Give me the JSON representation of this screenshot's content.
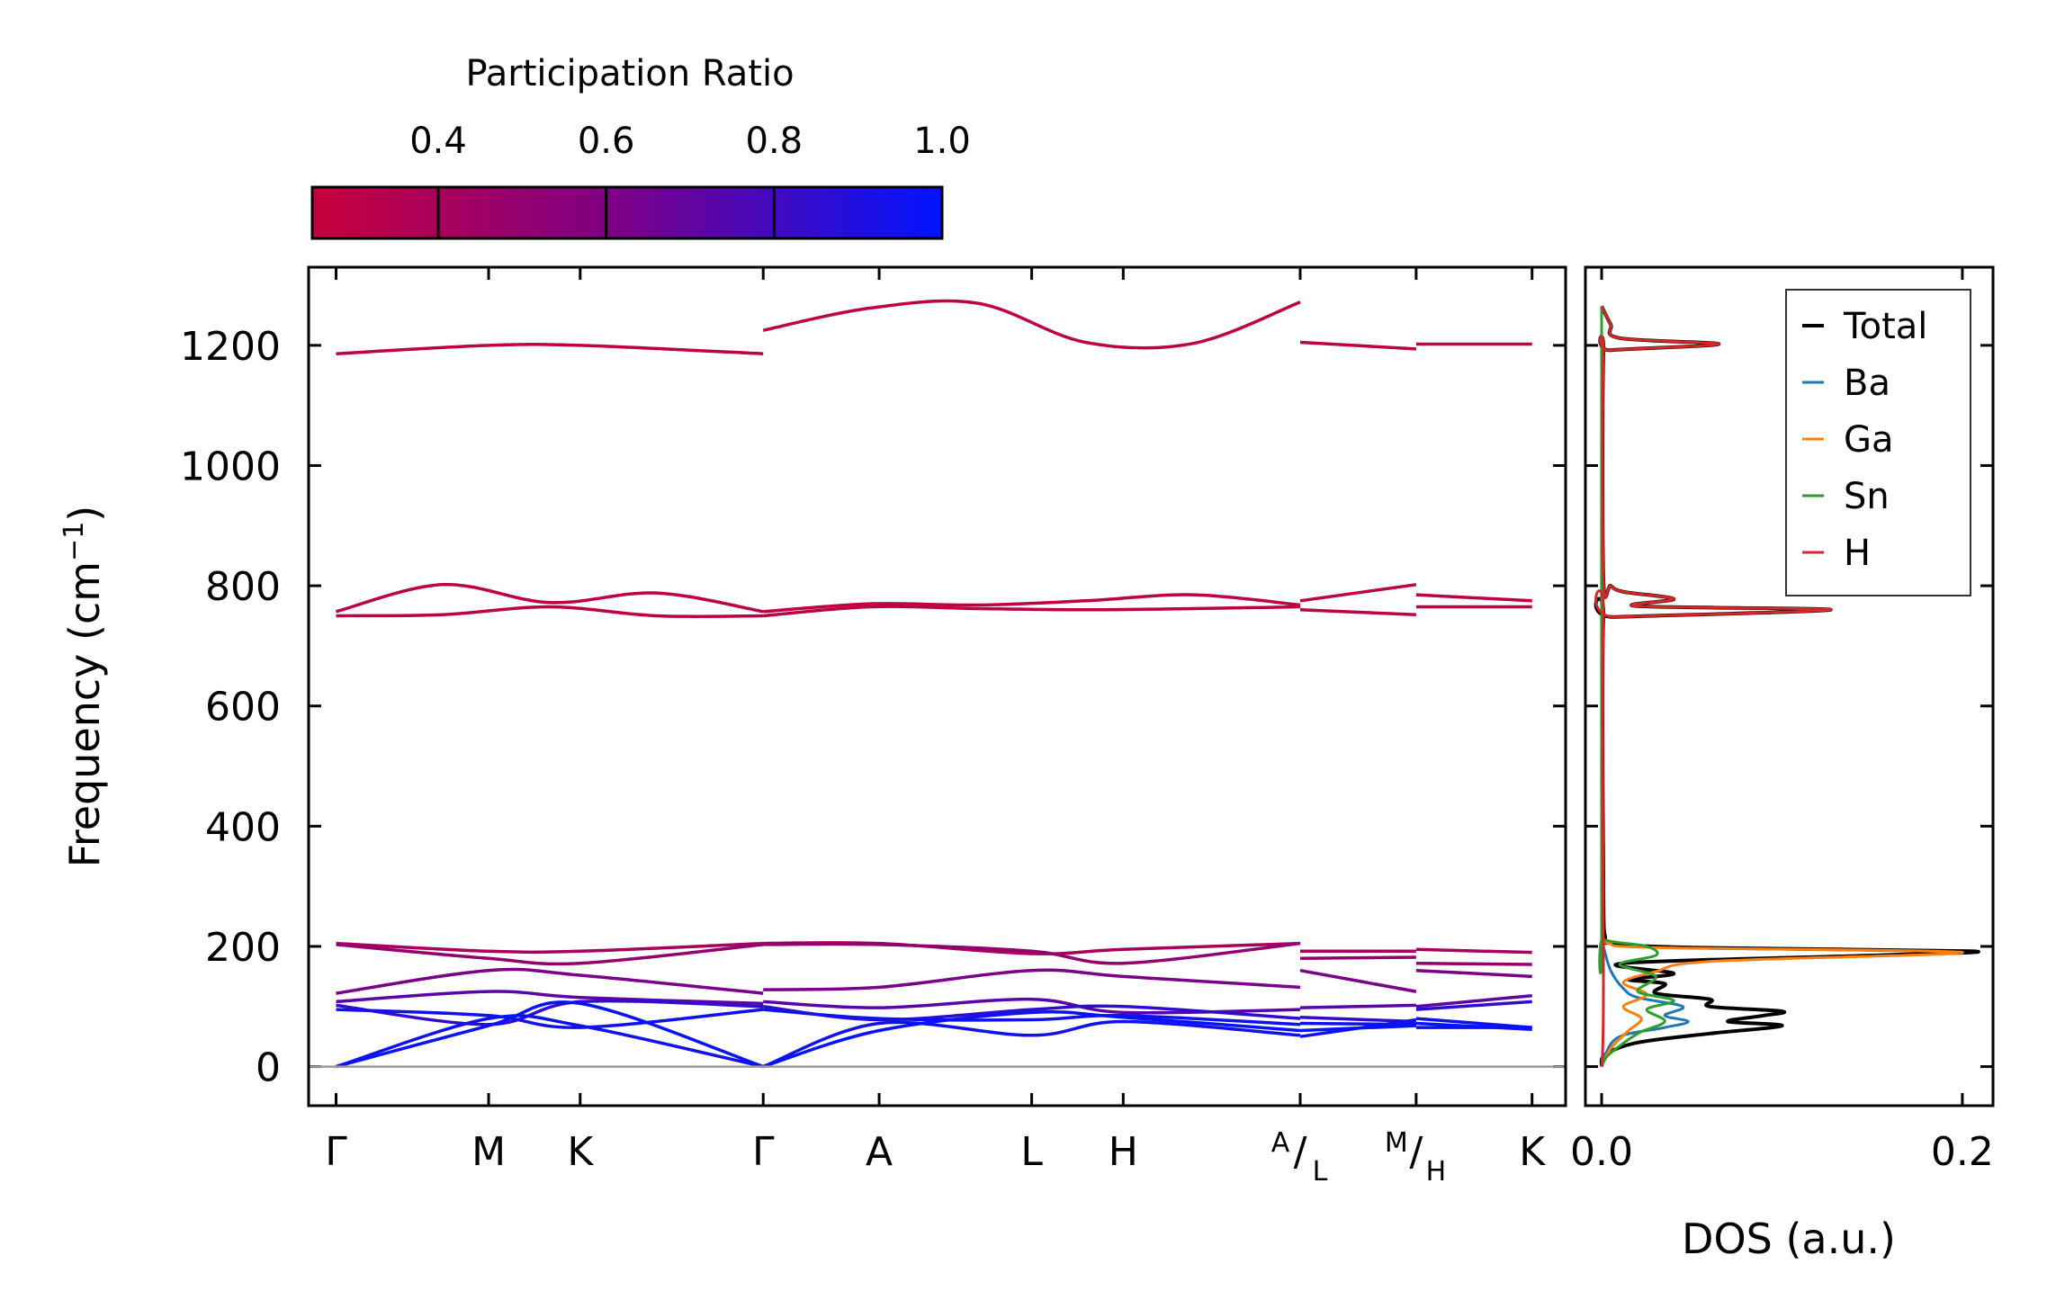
{
  "chart_data": [
    {
      "id": "band-structure",
      "type": "line",
      "ylabel": "Frequency (cm⁻¹)",
      "ylabel_text": "Frequency (cm",
      "ylabel_sup": "−1",
      "ylabel_close": ")",
      "ylim": [
        -65,
        1330
      ],
      "yticks": [
        0,
        200,
        400,
        600,
        800,
        1000,
        1200
      ],
      "ytick_labels": [
        "0",
        "200",
        "400",
        "600",
        "800",
        "1000",
        "1200"
      ],
      "kpoints": [
        {
          "label": "Γ",
          "x": 0.0
        },
        {
          "label": "M",
          "x": 1.0
        },
        {
          "label": "K",
          "x": 1.6
        },
        {
          "label": "Γ",
          "x": 2.8
        },
        {
          "label": "A",
          "x": 3.56
        },
        {
          "label": "L",
          "x": 4.56
        },
        {
          "label": "H",
          "x": 5.16
        },
        {
          "label_top": "A",
          "label_bottom": "L",
          "x": 6.32
        },
        {
          "label_top": "M",
          "label_bottom": "H",
          "x": 7.08
        },
        {
          "label": "K",
          "x": 7.84
        }
      ],
      "segments": [
        [
          0,
          2.8
        ],
        [
          2.8,
          6.32
        ],
        [
          6.32,
          7.08
        ],
        [
          7.08,
          7.84
        ]
      ],
      "zero_line": 0,
      "bands": [
        {
          "pr": 0.3,
          "segs": [
            [
              1186,
              1200,
              1200,
              1186
            ],
            [
              1225,
              1262,
              1270,
              1205,
              1203,
              1272
            ],
            [
              1205,
              1194
            ],
            [
              1202,
              1202
            ]
          ]
        },
        {
          "pr": 0.3,
          "segs": [
            [
              757,
              802,
              772,
              788,
              757
            ],
            [
              757,
              770,
              768,
              775,
              785,
              768
            ],
            [
              775,
              802
            ],
            [
              785,
              775
            ]
          ]
        },
        {
          "pr": 0.3,
          "segs": [
            [
              750,
              752,
              765,
              750,
              750
            ],
            [
              750,
              765,
              762,
              760,
              762,
              765
            ],
            [
              760,
              752
            ],
            [
              765,
              765
            ]
          ]
        },
        {
          "pr": 0.4,
          "segs": [
            [
              205,
              192,
              192,
              205
            ],
            [
              205,
              205,
              188,
              195,
              205
            ],
            [
              192,
              192
            ],
            [
              195,
              190
            ]
          ]
        },
        {
          "pr": 0.5,
          "segs": [
            [
              203,
              180,
              172,
              203
            ],
            [
              203,
              203,
              192,
              172,
              205
            ],
            [
              180,
              182
            ],
            [
              172,
              170
            ]
          ]
        },
        {
          "pr": 0.62,
          "segs": [
            [
              122,
              160,
              152,
              122
            ],
            [
              128,
              132,
              160,
              150,
              132
            ],
            [
              160,
              125
            ],
            [
              160,
              150
            ]
          ]
        },
        {
          "pr": 0.72,
          "segs": [
            [
              108,
              125,
              115,
              105
            ],
            [
              108,
              98,
              112,
              90,
              95
            ],
            [
              98,
              102
            ],
            [
              100,
              118
            ]
          ]
        },
        {
          "pr": 0.85,
          "segs": [
            [
              102,
              70,
              108,
              100
            ],
            [
              100,
              78,
              95,
              100,
              80
            ],
            [
              82,
              75
            ],
            [
              95,
              108
            ]
          ]
        },
        {
          "pr": 0.95,
          "segs": [
            [
              95,
              85,
              65,
              95
            ],
            [
              95,
              80,
              78,
              85,
              70
            ],
            [
              72,
              70
            ],
            [
              80,
              65
            ]
          ]
        },
        {
          "pr": 0.95,
          "segs": [
            [
              0,
              80,
              68,
              0
            ],
            [
              0,
              72,
              52,
              75,
              52
            ],
            [
              50,
              78
            ],
            [
              65,
              65
            ]
          ]
        },
        {
          "pr": 0.98,
          "segs": [
            [
              0,
              68,
              105,
              0
            ],
            [
              0,
              60,
              90,
              82,
              60
            ],
            [
              60,
              68
            ],
            [
              72,
              62
            ]
          ]
        }
      ]
    },
    {
      "id": "dos",
      "type": "line",
      "xlabel": "DOS (a.u.)",
      "xlim": [
        -0.009,
        0.217
      ],
      "xticks": [
        0.0,
        0.2
      ],
      "xtick_labels": [
        "0.0",
        "0.2"
      ],
      "ylim": [
        -65,
        1330
      ],
      "series": [
        {
          "name": "Total",
          "color": "#000000",
          "points": [
            [
              0,
              0
            ],
            [
              0.002,
              20
            ],
            [
              0.02,
              40
            ],
            [
              0.06,
              55
            ],
            [
              0.1,
              68
            ],
            [
              0.07,
              75
            ],
            [
              0.09,
              85
            ],
            [
              0.1,
              92
            ],
            [
              0.06,
              100
            ],
            [
              0.06,
              112
            ],
            [
              0.03,
              122
            ],
            [
              0.035,
              138
            ],
            [
              0.015,
              145
            ],
            [
              0.04,
              155
            ],
            [
              0.012,
              172
            ],
            [
              0.15,
              185
            ],
            [
              0.205,
              192
            ],
            [
              0.05,
              198
            ],
            [
              0.006,
              205
            ],
            [
              0.002,
              215
            ],
            [
              0.001,
              300
            ],
            [
              0.001,
              745
            ],
            [
              0.008,
              748
            ],
            [
              0.127,
              760
            ],
            [
              0.02,
              766
            ],
            [
              0.04,
              778
            ],
            [
              0.012,
              790
            ],
            [
              0.005,
              800
            ],
            [
              0.001,
              812
            ],
            [
              0.001,
              1185
            ],
            [
              0.005,
              1192
            ],
            [
              0.065,
              1202
            ],
            [
              0.01,
              1212
            ],
            [
              0.005,
              1235
            ],
            [
              0.0,
              1265
            ]
          ]
        },
        {
          "name": "Ba",
          "color": "#1f77b4",
          "points": [
            [
              0,
              0
            ],
            [
              0.002,
              20
            ],
            [
              0.01,
              50
            ],
            [
              0.035,
              65
            ],
            [
              0.048,
              75
            ],
            [
              0.035,
              85
            ],
            [
              0.045,
              100
            ],
            [
              0.02,
              115
            ],
            [
              0.012,
              130
            ],
            [
              0.005,
              160
            ],
            [
              0.001,
              200
            ],
            [
              0.0,
              215
            ]
          ]
        },
        {
          "name": "Ga",
          "color": "#ff7f0e",
          "points": [
            [
              0,
              0
            ],
            [
              0.005,
              30
            ],
            [
              0.015,
              60
            ],
            [
              0.022,
              80
            ],
            [
              0.012,
              100
            ],
            [
              0.025,
              120
            ],
            [
              0.012,
              140
            ],
            [
              0.03,
              158
            ],
            [
              0.06,
              175
            ],
            [
              0.2,
              190
            ],
            [
              0.03,
              198
            ],
            [
              0.004,
              205
            ],
            [
              0.0,
              215
            ]
          ]
        },
        {
          "name": "Sn",
          "color": "#2ca02c",
          "points": [
            [
              0,
              0
            ],
            [
              0.004,
              20
            ],
            [
              0.02,
              55
            ],
            [
              0.035,
              75
            ],
            [
              0.025,
              95
            ],
            [
              0.04,
              110
            ],
            [
              0.02,
              125
            ],
            [
              0.03,
              150
            ],
            [
              0.01,
              170
            ],
            [
              0.03,
              185
            ],
            [
              0.025,
              200
            ],
            [
              0.001,
              212
            ],
            [
              0.0,
              240
            ],
            [
              0.0,
              1265
            ]
          ]
        },
        {
          "name": "H",
          "color": "#d62728",
          "points": [
            [
              0,
              0
            ],
            [
              0.001,
              120
            ],
            [
              0.001,
              745
            ],
            [
              0.008,
              748
            ],
            [
              0.127,
              760
            ],
            [
              0.02,
              766
            ],
            [
              0.04,
              778
            ],
            [
              0.012,
              790
            ],
            [
              0.005,
              800
            ],
            [
              0.001,
              812
            ],
            [
              0.001,
              1185
            ],
            [
              0.005,
              1192
            ],
            [
              0.065,
              1202
            ],
            [
              0.01,
              1212
            ],
            [
              0.005,
              1235
            ],
            [
              0.0,
              1265
            ]
          ]
        }
      ]
    }
  ],
  "colorbar": {
    "title": "Participation Ratio",
    "min": 0.25,
    "max": 1.0,
    "ticks": [
      0.4,
      0.6,
      0.8,
      1.0
    ],
    "tick_labels": [
      "0.4",
      "0.6",
      "0.8",
      "1.0"
    ],
    "color_low": "#c8003c",
    "color_mid": "#7a008a",
    "color_high": "#0014ff"
  },
  "legend": {
    "location": "upper right",
    "entries": [
      "Total",
      "Ba",
      "Ga",
      "Sn",
      "H"
    ]
  }
}
